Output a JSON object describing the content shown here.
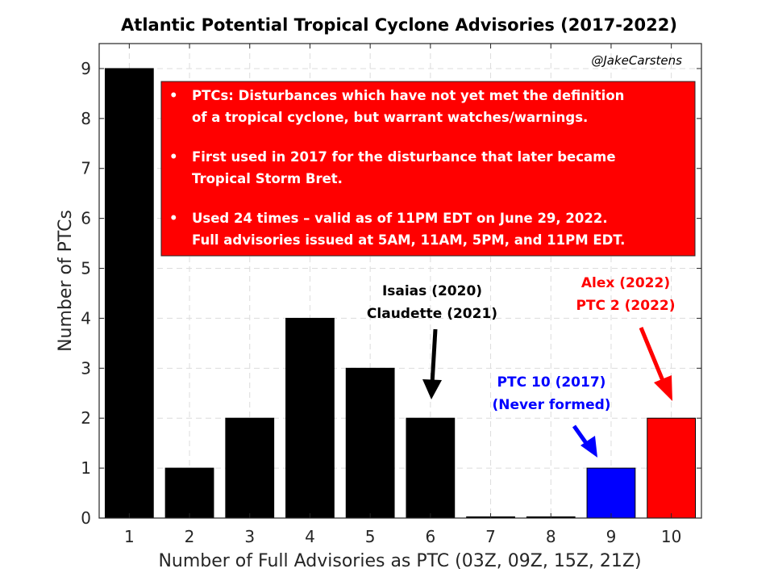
{
  "chart_data": {
    "type": "bar",
    "title": "Atlantic Potential Tropical Cyclone Advisories (2017-2022)",
    "xlabel": "Number of Full Advisories as PTC (03Z, 09Z, 15Z, 21Z)",
    "ylabel": "Number of PTCs",
    "categories": [
      "1",
      "2",
      "3",
      "4",
      "5",
      "6",
      "7",
      "8",
      "9",
      "10"
    ],
    "values": [
      9,
      1,
      2,
      4,
      3,
      2,
      0,
      0,
      1,
      2
    ],
    "bar_colors": [
      "#000000",
      "#000000",
      "#000000",
      "#000000",
      "#000000",
      "#000000",
      "#000000",
      "#000000",
      "#0000ff",
      "#ff0000"
    ],
    "ylim": [
      0,
      9.5
    ],
    "yticks": [
      "0",
      "1",
      "2",
      "3",
      "4",
      "5",
      "6",
      "7",
      "8",
      "9"
    ],
    "grid": true,
    "credit": "@JakeCarstens",
    "info_box": {
      "background": "#ff0000",
      "bullet": "•",
      "lines": [
        "PTCs: Disturbances which have not yet met the definition",
        "of a tropical cyclone, but warrant watches/warnings.",
        "First used in 2017 for the disturbance that later became",
        "Tropical Storm Bret.",
        "Used 24 times – valid as of 11PM EDT on June 29, 2022.",
        "Full advisories issued at 5AM, 11AM, 5PM, and 11PM EDT."
      ]
    },
    "annotations": [
      {
        "lines": [
          "Isaias (2020)",
          "Claudette (2021)"
        ],
        "color": "#000000",
        "target": "6"
      },
      {
        "lines": [
          "PTC 10 (2017)",
          "(Never formed)"
        ],
        "color": "#0000ff",
        "target": "9"
      },
      {
        "lines": [
          "Alex (2022)",
          "PTC 2 (2022)"
        ],
        "color": "#ff0000",
        "target": "10"
      }
    ]
  }
}
